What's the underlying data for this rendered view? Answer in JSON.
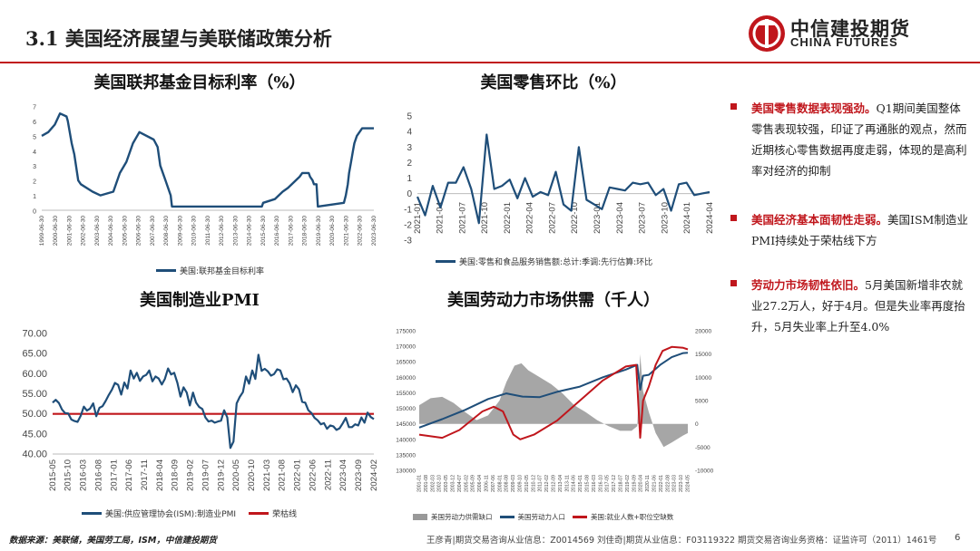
{
  "header": {
    "title": "3.1  美国经济展望与美联储政策分析",
    "logo_cn": "中信建投期货",
    "logo_en": "CHINA FUTURES",
    "accent_color": "#c0161c"
  },
  "bullets": [
    {
      "highlight": "美国零售数据表现强劲。",
      "text": "Q1期间美国整体零售表现较强，印证了再通胀的观点，然而近期核心零售数据再度走弱，体现的是高利率对经济的抑制"
    },
    {
      "highlight": "美国经济基本面韧性走弱。",
      "text": "美国ISM制造业PMI持续处于荣枯线下方"
    },
    {
      "highlight": "劳动力市场韧性依旧。",
      "text": "5月美国新增非农就业27.2万人，好于4月。但是失业率再度抬升，5月失业率上升至4.0%"
    }
  ],
  "footer": {
    "source": "数据来源：美联储，美国劳工局，ISM，中信建投期货",
    "analysts": "王彦青|期货交易咨询从业信息：Z0014569    刘佳奇|期货从业信息：F03119322    期货交易咨询业务资格：证监许可（2011）1461号",
    "page": "6"
  },
  "chart_data": [
    {
      "id": "fed_rate",
      "type": "line",
      "title": "美国联邦基金目标利率（%）",
      "legend": [
        {
          "name": "美国:联邦基金目标利率",
          "color": "#1f4e79"
        }
      ],
      "ylim": [
        0,
        7
      ],
      "yticks": [
        0,
        1,
        2,
        3,
        4,
        5,
        6,
        7
      ],
      "x_labels": [
        "1999-06-30",
        "2000-06-30",
        "2001-06-30",
        "2002-06-30",
        "2003-06-30",
        "2004-06-30",
        "2005-06-30",
        "2006-06-30",
        "2007-06-30",
        "2008-06-30",
        "2009-06-30",
        "2010-06-30",
        "2011-06-30",
        "2012-06-30",
        "2013-06-30",
        "2014-06-30",
        "2015-06-30",
        "2016-06-30",
        "2017-06-30",
        "2018-06-30",
        "2019-06-30",
        "2020-06-30",
        "2021-06-30",
        "2022-06-30",
        "2023-06-30"
      ],
      "x_range": [
        1999.0,
        2024.5
      ],
      "points": [
        [
          1999.0,
          5.0
        ],
        [
          1999.5,
          5.25
        ],
        [
          2000.0,
          5.75
        ],
        [
          2000.4,
          6.5
        ],
        [
          2000.9,
          6.3
        ],
        [
          2001.0,
          6.0
        ],
        [
          2001.3,
          4.5
        ],
        [
          2001.5,
          3.75
        ],
        [
          2001.8,
          2.0
        ],
        [
          2002.0,
          1.75
        ],
        [
          2002.9,
          1.25
        ],
        [
          2003.5,
          1.0
        ],
        [
          2004.5,
          1.25
        ],
        [
          2005.0,
          2.5
        ],
        [
          2005.5,
          3.25
        ],
        [
          2006.0,
          4.5
        ],
        [
          2006.5,
          5.25
        ],
        [
          2007.6,
          4.75
        ],
        [
          2007.9,
          4.25
        ],
        [
          2008.1,
          3.0
        ],
        [
          2008.5,
          2.0
        ],
        [
          2008.9,
          1.0
        ],
        [
          2009.0,
          0.25
        ],
        [
          2015.9,
          0.25
        ],
        [
          2016.0,
          0.5
        ],
        [
          2016.9,
          0.75
        ],
        [
          2017.2,
          1.0
        ],
        [
          2017.5,
          1.25
        ],
        [
          2017.9,
          1.5
        ],
        [
          2018.2,
          1.75
        ],
        [
          2018.5,
          2.0
        ],
        [
          2018.8,
          2.25
        ],
        [
          2019.0,
          2.5
        ],
        [
          2019.5,
          2.5
        ],
        [
          2019.6,
          2.25
        ],
        [
          2019.8,
          2.0
        ],
        [
          2019.9,
          1.75
        ],
        [
          2020.1,
          1.75
        ],
        [
          2020.2,
          0.25
        ],
        [
          2022.2,
          0.5
        ],
        [
          2022.35,
          1.0
        ],
        [
          2022.5,
          1.75
        ],
        [
          2022.6,
          2.5
        ],
        [
          2022.75,
          3.25
        ],
        [
          2022.9,
          4.0
        ],
        [
          2023.0,
          4.5
        ],
        [
          2023.2,
          5.0
        ],
        [
          2023.6,
          5.5
        ],
        [
          2024.5,
          5.5
        ]
      ]
    },
    {
      "id": "retail_mom",
      "type": "line",
      "title": "美国零售环比（%）",
      "legend": [
        {
          "name": "美国:零售和食品服务销售额:总计:季调:先行估算:环比",
          "color": "#1f4e79"
        }
      ],
      "ylim": [
        -3,
        5
      ],
      "yticks": [
        -3,
        -2,
        -1,
        0,
        1,
        2,
        3,
        4,
        5
      ],
      "x_labels": [
        "2021-01",
        "2021-04",
        "2021-07",
        "2021-10",
        "2022-01",
        "2022-04",
        "2022-07",
        "2022-10",
        "2023-01",
        "2023-04",
        "2023-07",
        "2023-10",
        "2024-01",
        "2024-04"
      ],
      "values": [
        -0.2,
        -1.4,
        0.5,
        -0.9,
        0.7,
        0.7,
        1.7,
        0.3,
        -1.9,
        3.8,
        0.3,
        0.5,
        0.9,
        -0.3,
        1.0,
        -0.2,
        0.1,
        -0.1,
        1.4,
        -0.7,
        -1.1,
        3.0,
        -0.4,
        -0.7,
        -1.0,
        0.4,
        0.3,
        0.2,
        0.7,
        0.6,
        0.7,
        -0.1,
        0.3,
        -1.1,
        0.6,
        0.7,
        -0.1,
        0.0,
        0.1
      ]
    },
    {
      "id": "ism_pmi",
      "type": "line",
      "title": "美国制造业PMI",
      "legend": [
        {
          "name": "美国:供应管理协会(ISM):制造业PMI",
          "color": "#1f4e79"
        },
        {
          "name": "荣枯线",
          "color": "#c0161c"
        }
      ],
      "ylim": [
        40,
        70
      ],
      "yticks": [
        40.0,
        45.0,
        50.0,
        55.0,
        60.0,
        65.0,
        70.0
      ],
      "x_labels": [
        "2015-05",
        "2015-10",
        "2016-03",
        "2016-08",
        "2017-01",
        "2017-06",
        "2017-11",
        "2018-04",
        "2018-09",
        "2019-02",
        "2019-07",
        "2019-12",
        "2020-05",
        "2020-10",
        "2021-03",
        "2021-08",
        "2022-01",
        "2022-06",
        "2022-11",
        "2023-04",
        "2023-09",
        "2024-02"
      ],
      "threshold": 50,
      "values": [
        52.8,
        53.5,
        52.7,
        51.1,
        50.2,
        50.1,
        48.6,
        48.2,
        48.0,
        49.5,
        51.8,
        50.8,
        51.3,
        52.6,
        49.4,
        51.5,
        51.9,
        53.2,
        54.7,
        56.0,
        57.7,
        57.2,
        54.8,
        57.8,
        56.3,
        60.8,
        58.8,
        60.2,
        58.2,
        59.3,
        59.7,
        60.8,
        58.1,
        59.3,
        58.8,
        57.3,
        58.7,
        61.3,
        59.8,
        60.2,
        57.7,
        54.3,
        56.6,
        55.3,
        52.1,
        55.3,
        52.8,
        51.7,
        51.2,
        49.1,
        48.1,
        48.3,
        47.8,
        48.1,
        48.3,
        50.9,
        49.1,
        41.5,
        43.1,
        52.6,
        54.2,
        55.4,
        59.3,
        57.5,
        60.8,
        58.7,
        64.7,
        60.7,
        61.2,
        60.6,
        59.5,
        59.9,
        61.1,
        60.8,
        58.6,
        58.8,
        57.6,
        55.4,
        57.1,
        56.1,
        53.0,
        52.8,
        50.9,
        50.2,
        49.0,
        48.4,
        47.4,
        47.7,
        46.3,
        47.1,
        46.9,
        46.0,
        46.4,
        47.6,
        49.0,
        46.7,
        46.7,
        47.4,
        47.1,
        49.1,
        47.8,
        50.3,
        49.2,
        48.7
      ]
    },
    {
      "id": "labor",
      "type": "line",
      "title": "美国劳动力市场供需（千人）",
      "legend": [
        {
          "name": "美国劳动力供需缺口",
          "color": "#999999"
        },
        {
          "name": "美国劳动力人口",
          "color": "#1f4e79"
        },
        {
          "name": "美国:就业人数+职位空缺数",
          "color": "#c0161c"
        }
      ],
      "ylim_left": [
        130000,
        175000
      ],
      "yticks_left": [
        130000,
        135000,
        140000,
        145000,
        150000,
        155000,
        160000,
        165000,
        170000,
        175000
      ],
      "ylim_right": [
        -10000,
        20000
      ],
      "yticks_right": [
        -10000,
        -5000,
        0,
        5000,
        10000,
        15000,
        20000
      ],
      "x_labels": [
        "2001-01",
        "2001-08",
        "2002-03",
        "2002-10",
        "2003-05",
        "2003-12",
        "2004-07",
        "2005-02",
        "2005-09",
        "2006-04",
        "2006-11",
        "2007-06",
        "2008-01",
        "2008-08",
        "2009-03",
        "2009-10",
        "2010-05",
        "2010-12",
        "2011-07",
        "2012-02",
        "2012-09",
        "2013-04",
        "2013-11",
        "2014-06",
        "2015-01",
        "2015-08",
        "2016-03",
        "2016-10",
        "2017-05",
        "2017-12",
        "2018-07",
        "2019-02",
        "2019-09",
        "2020-04",
        "2020-11",
        "2021-06",
        "2022-01",
        "2022-08",
        "2023-03",
        "2023-10",
        "2024-05"
      ],
      "x_range": [
        2001.0,
        2024.4
      ],
      "labor_force": [
        [
          2001.0,
          143800
        ],
        [
          2003.0,
          146500
        ],
        [
          2005.0,
          149500
        ],
        [
          2007.0,
          153000
        ],
        [
          2008.6,
          154800
        ],
        [
          2010.0,
          153800
        ],
        [
          2011.5,
          153600
        ],
        [
          2013.0,
          155300
        ],
        [
          2015.0,
          157000
        ],
        [
          2017.0,
          160000
        ],
        [
          2019.0,
          162500
        ],
        [
          2020.0,
          164000
        ],
        [
          2020.25,
          156000
        ],
        [
          2020.5,
          160500
        ],
        [
          2021.0,
          160800
        ],
        [
          2022.0,
          164000
        ],
        [
          2023.0,
          166500
        ],
        [
          2024.0,
          167800
        ],
        [
          2024.4,
          167900
        ]
      ],
      "employed_plus_openings": [
        [
          2001.0,
          141500
        ],
        [
          2003.0,
          140500
        ],
        [
          2004.5,
          143000
        ],
        [
          2006.5,
          149000
        ],
        [
          2007.5,
          150500
        ],
        [
          2008.3,
          149000
        ],
        [
          2009.2,
          141500
        ],
        [
          2009.8,
          140000
        ],
        [
          2011.0,
          141500
        ],
        [
          2013.0,
          146000
        ],
        [
          2015.0,
          152500
        ],
        [
          2017.0,
          159000
        ],
        [
          2019.0,
          163500
        ],
        [
          2019.9,
          164000
        ],
        [
          2020.25,
          140500
        ],
        [
          2020.5,
          152500
        ],
        [
          2021.0,
          157000
        ],
        [
          2021.6,
          164000
        ],
        [
          2022.2,
          168500
        ],
        [
          2023.0,
          169800
        ],
        [
          2024.0,
          169500
        ],
        [
          2024.4,
          169000
        ]
      ],
      "gap": [
        [
          2001.0,
          4000
        ],
        [
          2002.0,
          5500
        ],
        [
          2003.0,
          5800
        ],
        [
          2004.0,
          4500
        ],
        [
          2005.0,
          2500
        ],
        [
          2006.0,
          800
        ],
        [
          2007.0,
          1800
        ],
        [
          2008.0,
          5000
        ],
        [
          2008.6,
          9000
        ],
        [
          2009.3,
          12500
        ],
        [
          2009.9,
          13000
        ],
        [
          2010.5,
          11500
        ],
        [
          2011.5,
          10000
        ],
        [
          2012.5,
          8500
        ],
        [
          2013.5,
          6500
        ],
        [
          2014.5,
          4000
        ],
        [
          2015.5,
          2500
        ],
        [
          2016.5,
          800
        ],
        [
          2017.5,
          -500
        ],
        [
          2018.5,
          -1500
        ],
        [
          2019.5,
          -1500
        ],
        [
          2020.0,
          -500
        ],
        [
          2020.25,
          15000
        ],
        [
          2020.5,
          7000
        ],
        [
          2021.0,
          2500
        ],
        [
          2021.6,
          -2000
        ],
        [
          2022.3,
          -5000
        ],
        [
          2023.0,
          -4000
        ],
        [
          2024.0,
          -2500
        ],
        [
          2024.4,
          -2000
        ]
      ]
    }
  ]
}
